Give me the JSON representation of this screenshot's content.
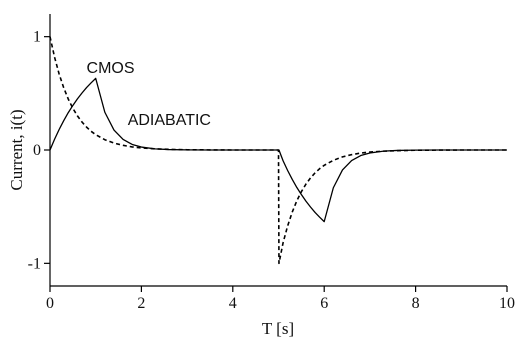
{
  "chart_data": {
    "type": "line",
    "title": "",
    "xlabel": "T [s]",
    "ylabel": "Current, i(t)",
    "xlim": [
      0,
      10
    ],
    "ylim": [
      -1.2,
      1.2
    ],
    "x_ticks": [
      0,
      2,
      4,
      6,
      8,
      10
    ],
    "y_ticks": [
      -1,
      0,
      1
    ],
    "grid": false,
    "series": [
      {
        "name": "ADIABATIC",
        "color": "#000000",
        "style": "solid",
        "label_position": [
          1.7,
          0.22
        ],
        "x": [
          0,
          0.1,
          0.2,
          0.3,
          0.4,
          0.5,
          0.6,
          0.7,
          0.8,
          0.9,
          1.0,
          1.2,
          1.4,
          1.6,
          1.8,
          2.0,
          2.3,
          2.6,
          3.0,
          3.5,
          4.0,
          4.5,
          5.0,
          5.01,
          5.1,
          5.2,
          5.3,
          5.4,
          5.5,
          5.6,
          5.7,
          5.8,
          5.9,
          6.0,
          6.2,
          6.4,
          6.6,
          6.8,
          7.0,
          7.3,
          7.6,
          8.0,
          8.5,
          9.0,
          9.5,
          10.0
        ],
        "y": [
          0,
          0.095,
          0.181,
          0.259,
          0.33,
          0.393,
          0.451,
          0.503,
          0.551,
          0.593,
          0.632,
          0.333,
          0.176,
          0.093,
          0.049,
          0.026,
          0.01,
          0.004,
          0.001,
          0.0,
          0.0,
          0.0,
          0.0,
          0.0,
          -0.095,
          -0.181,
          -0.259,
          -0.33,
          -0.393,
          -0.451,
          -0.503,
          -0.551,
          -0.593,
          -0.632,
          -0.333,
          -0.176,
          -0.093,
          -0.049,
          -0.026,
          -0.01,
          -0.004,
          -0.001,
          0.0,
          0.0,
          0.0,
          0.0
        ]
      },
      {
        "name": "CMOS",
        "color": "#000000",
        "style": "dashed",
        "label_position": [
          0.8,
          0.68
        ],
        "x": [
          0,
          0.1,
          0.2,
          0.3,
          0.4,
          0.5,
          0.6,
          0.7,
          0.8,
          0.9,
          1.0,
          1.2,
          1.4,
          1.6,
          1.8,
          2.0,
          2.3,
          2.6,
          3.0,
          3.5,
          4.0,
          4.5,
          5.0,
          5.01,
          5.1,
          5.2,
          5.3,
          5.4,
          5.5,
          5.6,
          5.7,
          5.8,
          5.9,
          6.0,
          6.2,
          6.4,
          6.6,
          6.8,
          7.0,
          7.3,
          7.6,
          8.0,
          8.5,
          9.0,
          9.5,
          10.0
        ],
        "y": [
          1.0,
          0.819,
          0.67,
          0.549,
          0.449,
          0.368,
          0.301,
          0.247,
          0.202,
          0.165,
          0.135,
          0.091,
          0.061,
          0.041,
          0.027,
          0.018,
          0.01,
          0.006,
          0.002,
          0.001,
          0.0,
          0.0,
          0.0,
          -1.0,
          -0.819,
          -0.67,
          -0.549,
          -0.449,
          -0.368,
          -0.301,
          -0.247,
          -0.202,
          -0.165,
          -0.135,
          -0.091,
          -0.061,
          -0.041,
          -0.027,
          -0.018,
          -0.01,
          -0.006,
          -0.002,
          -0.001,
          0.0,
          0.0,
          0.0
        ]
      }
    ]
  }
}
